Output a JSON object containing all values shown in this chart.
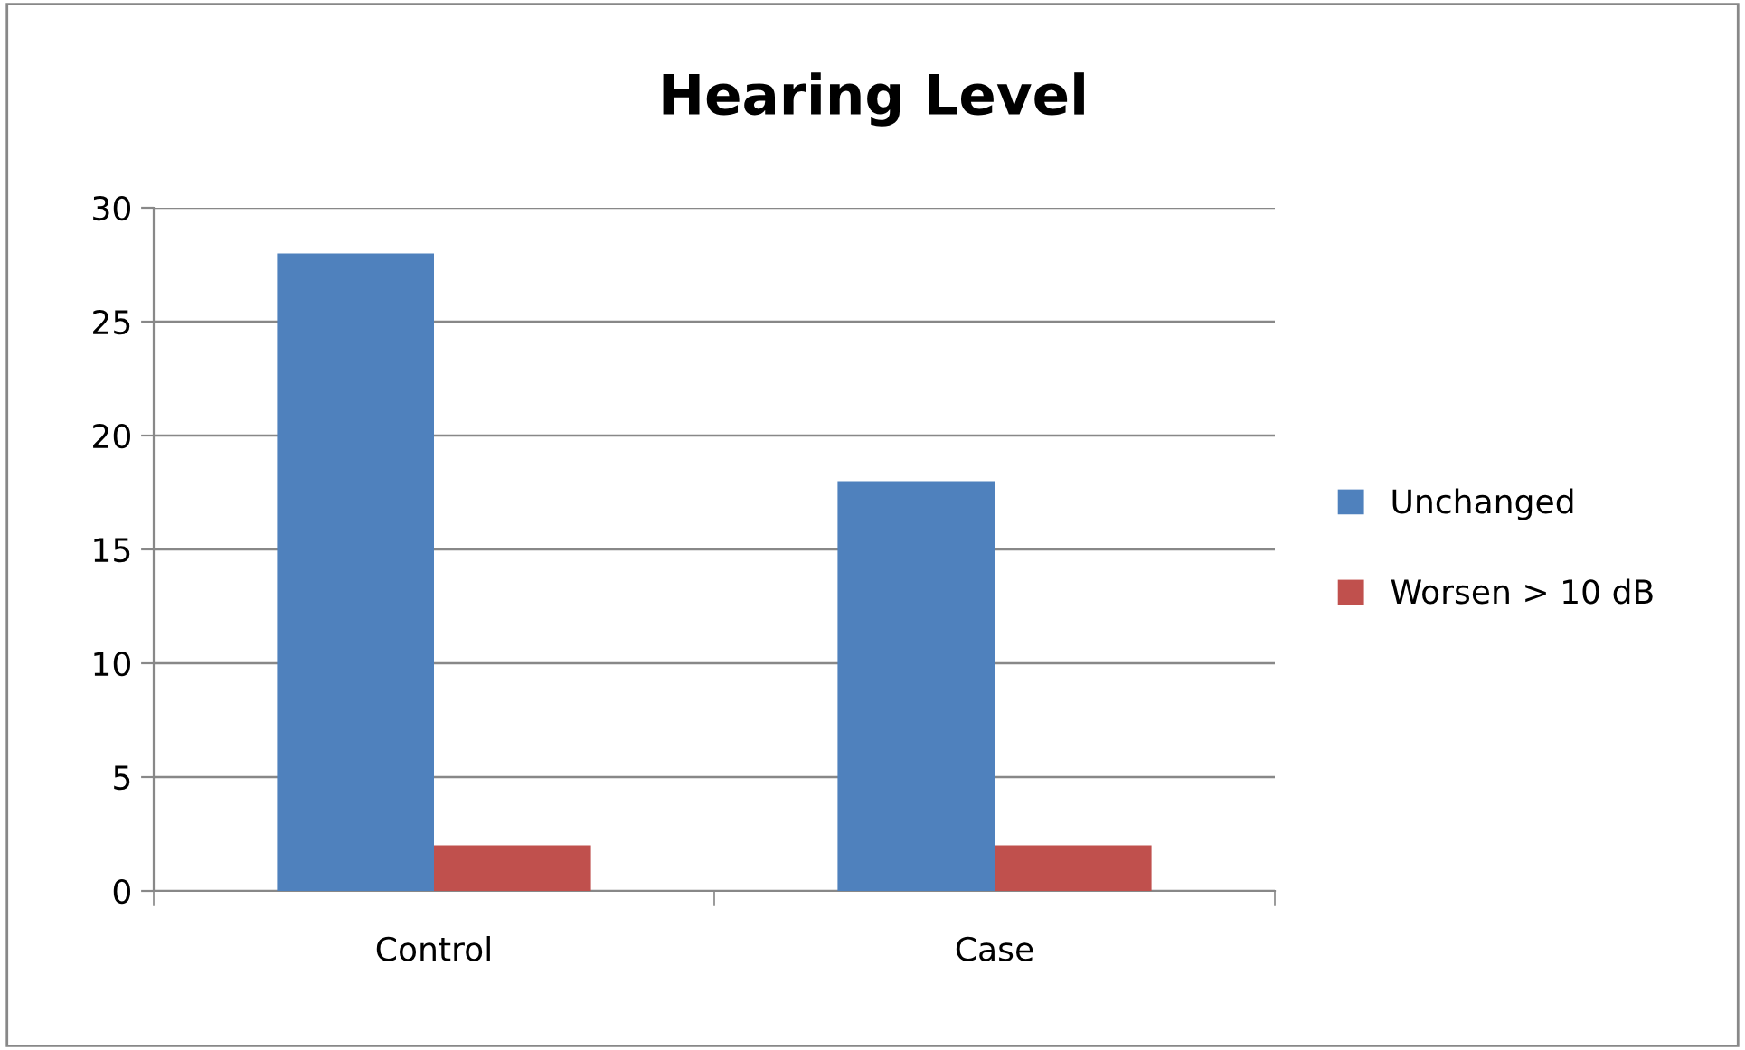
{
  "chart_data": {
    "type": "bar",
    "title": "Hearing Level",
    "categories": [
      "Control",
      "Case"
    ],
    "series": [
      {
        "name": "Unchanged",
        "color": "#4f81bd",
        "values": [
          28,
          18
        ]
      },
      {
        "name": "Worsen > 10 dB",
        "color": "#c0504d",
        "values": [
          2,
          2
        ]
      }
    ],
    "ylim": [
      0,
      30
    ],
    "yticks": [
      0,
      5,
      10,
      15,
      20,
      25,
      30
    ],
    "grid": "y",
    "legend": "right"
  }
}
